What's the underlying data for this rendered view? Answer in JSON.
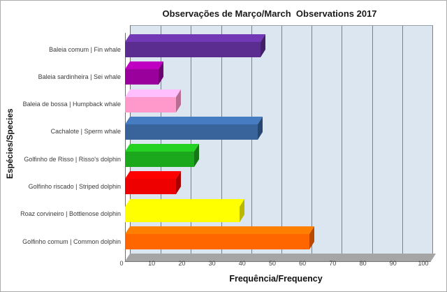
{
  "chart_data": {
    "type": "bar",
    "orientation": "horizontal",
    "style": "3d",
    "title": "Observações de Março/March  Observations 2017",
    "xlabel": "Frequência/Frequency",
    "ylabel": "Espécies/Species",
    "xlim": [
      0,
      100
    ],
    "x_ticks": [
      0,
      10,
      20,
      30,
      40,
      50,
      60,
      70,
      80,
      90,
      100
    ],
    "grid": true,
    "legend": false,
    "categories": [
      "Baleia comum | Fin whale",
      "Baleia sardinheira | Sei whale",
      "Baleia de bossa | Humpback whale",
      "Cachalote | Sperm whale",
      "Golfinho de Risso | Risso's dolphin",
      "Golfinho riscado | Striped dolphin",
      "Roaz corvineiro | Bottlenose dolphin",
      "Golfinho comum | Common dolphin"
    ],
    "values": [
      45,
      11,
      17,
      44,
      23,
      17,
      38,
      61
    ],
    "bar_colors": [
      "#5C2D91",
      "#99009C",
      "#FF99CC",
      "#38639B",
      "#1CA81C",
      "#EE0000",
      "#FFFF00",
      "#FF6600"
    ]
  },
  "colors": {
    "wall_background": "#DCE6F1",
    "floor": "#A5A5A5",
    "gridline": "#76818D",
    "title_text": "#1A1A1A",
    "axis_text": "#3B3B3B"
  }
}
